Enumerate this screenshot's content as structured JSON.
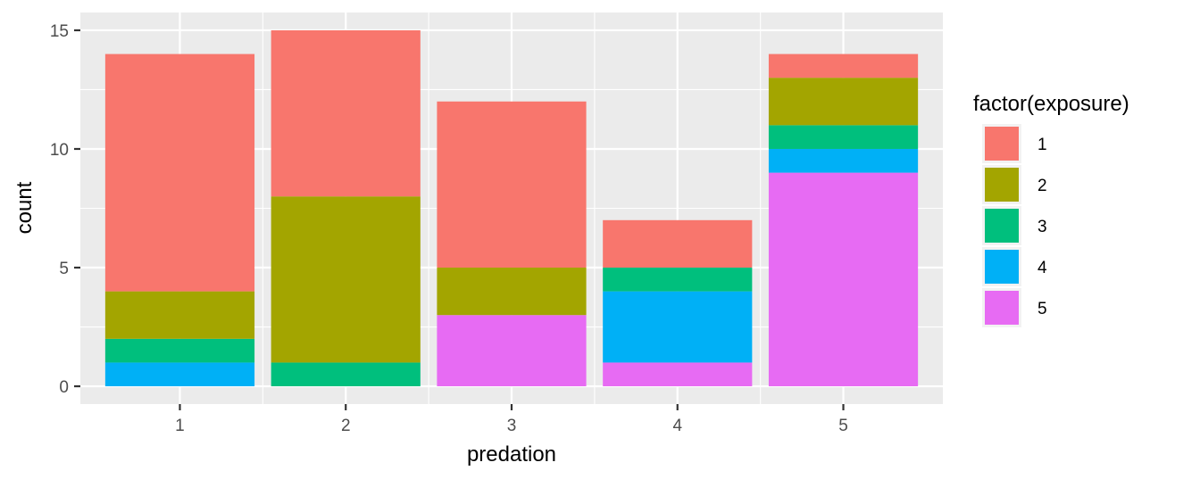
{
  "chart_data": {
    "type": "bar",
    "stacked": true,
    "categories": [
      "1",
      "2",
      "3",
      "4",
      "5"
    ],
    "series": [
      {
        "name": "1",
        "color": "#F8766D",
        "values": [
          10,
          7,
          7,
          2,
          1
        ]
      },
      {
        "name": "2",
        "color": "#A3A500",
        "values": [
          2,
          7,
          2,
          0,
          2
        ]
      },
      {
        "name": "3",
        "color": "#00BF7D",
        "values": [
          1,
          1,
          0,
          1,
          1
        ]
      },
      {
        "name": "4",
        "color": "#00B0F6",
        "values": [
          1,
          0,
          0,
          3,
          1
        ]
      },
      {
        "name": "5",
        "color": "#E76BF3",
        "values": [
          0,
          0,
          3,
          1,
          9
        ]
      }
    ],
    "xlabel": "predation",
    "ylabel": "count",
    "ylim": [
      0,
      15
    ],
    "yticks": [
      0,
      5,
      10,
      15
    ],
    "legend_title": "factor(exposure)",
    "legend_position": "right",
    "grid": true,
    "panel_background": "#EBEBEB"
  }
}
